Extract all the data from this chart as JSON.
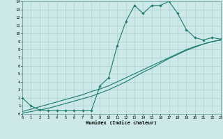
{
  "title": "",
  "xlabel": "Humidex (Indice chaleur)",
  "bg_color": "#cce8e8",
  "grid_color": "#aad0d0",
  "line_color": "#1a7a6e",
  "xmin": 0,
  "xmax": 23,
  "ymin": 0,
  "ymax": 14,
  "line1_x": [
    0,
    1,
    2,
    3,
    4,
    5,
    6,
    7,
    8,
    9,
    10,
    11,
    12,
    13,
    14,
    15,
    16,
    17,
    18,
    19,
    20,
    21,
    22,
    23
  ],
  "line1_y": [
    2.0,
    1.0,
    0.5,
    0.4,
    0.4,
    0.4,
    0.4,
    0.4,
    0.4,
    3.5,
    4.5,
    8.5,
    11.5,
    13.5,
    12.5,
    13.5,
    13.5,
    14.0,
    12.5,
    10.5,
    9.5,
    9.2,
    9.5,
    9.3
  ],
  "line2_x": [
    0,
    1,
    2,
    3,
    4,
    5,
    6,
    7,
    8,
    9,
    10,
    11,
    12,
    13,
    14,
    15,
    16,
    17,
    18,
    19,
    20,
    21,
    22,
    23
  ],
  "line2_y": [
    0.3,
    0.6,
    0.9,
    1.2,
    1.5,
    1.8,
    2.1,
    2.4,
    2.8,
    3.1,
    3.5,
    4.0,
    4.5,
    5.0,
    5.5,
    6.0,
    6.5,
    7.0,
    7.5,
    8.0,
    8.4,
    8.7,
    9.0,
    9.2
  ],
  "line3_x": [
    0,
    1,
    2,
    3,
    4,
    5,
    6,
    7,
    8,
    9,
    10,
    11,
    12,
    13,
    14,
    15,
    16,
    17,
    18,
    19,
    20,
    21,
    22,
    23
  ],
  "line3_y": [
    0.1,
    0.3,
    0.5,
    0.7,
    1.0,
    1.3,
    1.6,
    1.9,
    2.2,
    2.6,
    3.0,
    3.5,
    4.0,
    4.6,
    5.2,
    5.7,
    6.3,
    6.9,
    7.4,
    7.9,
    8.3,
    8.7,
    9.0,
    9.2
  ]
}
